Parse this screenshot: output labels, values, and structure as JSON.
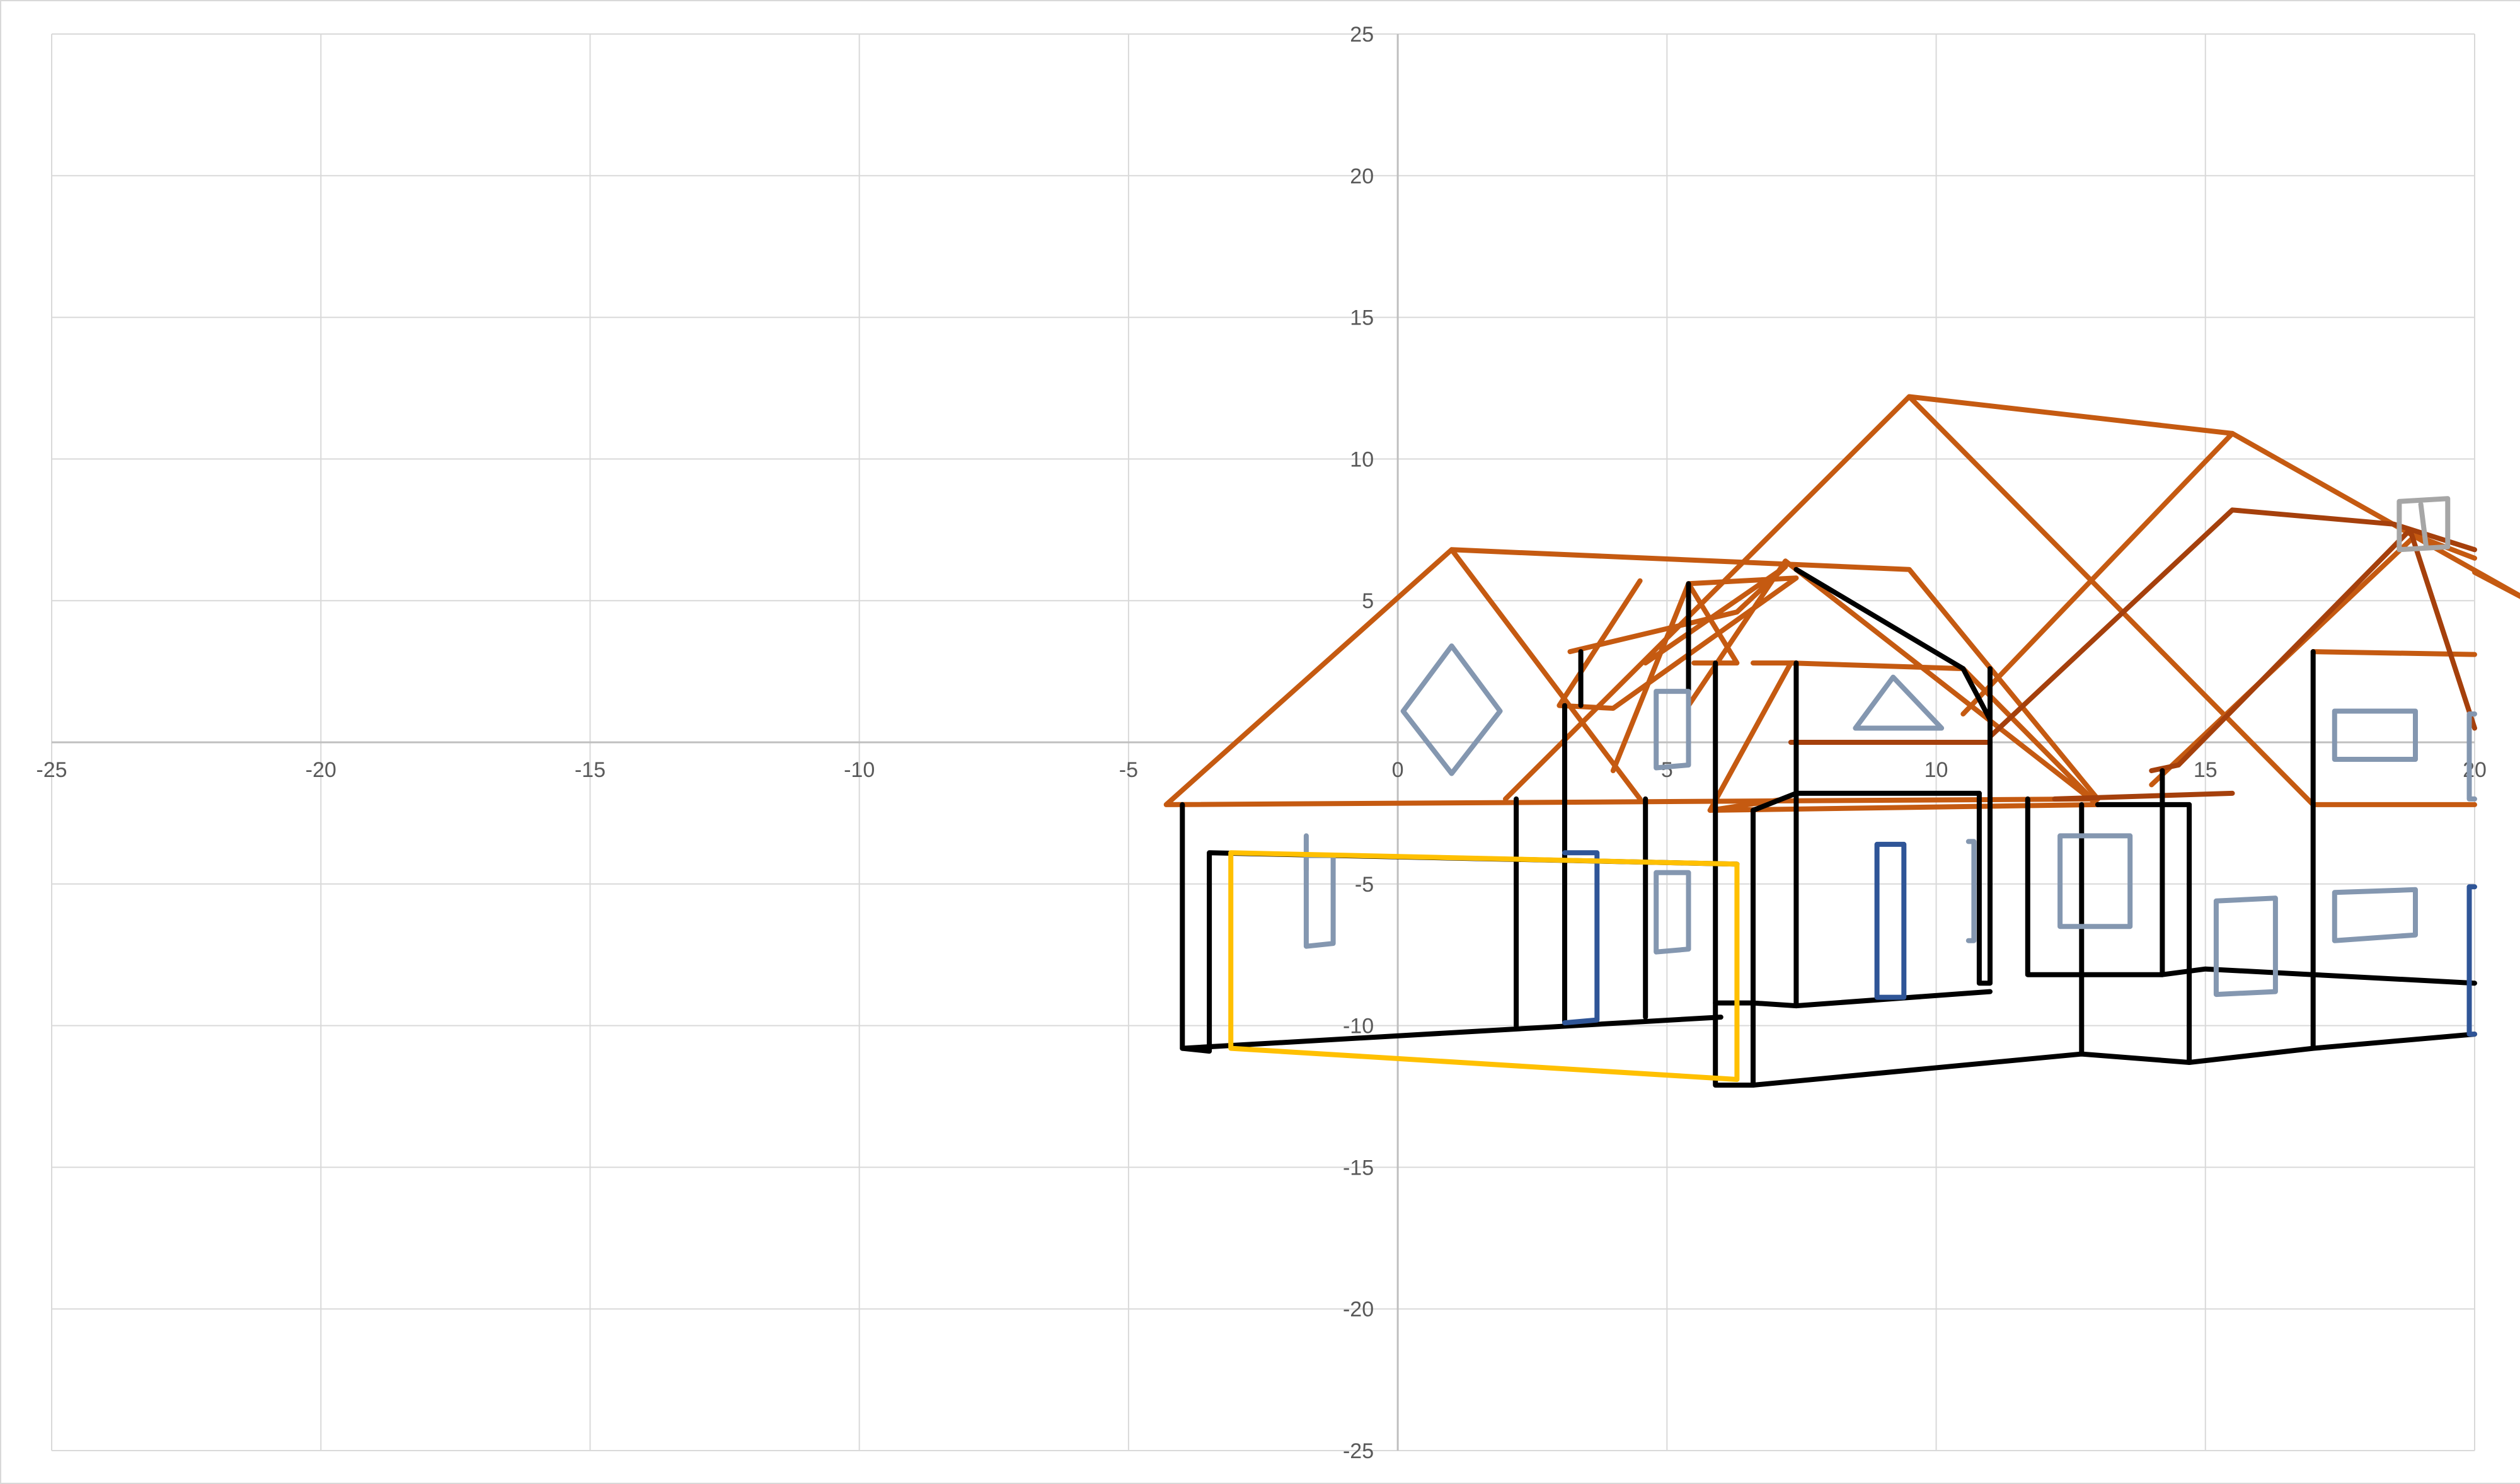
{
  "chart_data": {
    "type": "scatter",
    "title": "",
    "xlabel": "",
    "ylabel": "",
    "xlim": [
      -25,
      20
    ],
    "ylim": [
      -25,
      25
    ],
    "x_ticks": [
      -25,
      -20,
      -15,
      -10,
      -5,
      0,
      5,
      10,
      15,
      20
    ],
    "y_ticks": [
      25,
      20,
      15,
      10,
      5,
      0,
      -5,
      -10,
      -15,
      -20,
      -25
    ],
    "x_tick_labels": [
      "-25",
      "-20",
      "-15",
      "-10",
      "-5",
      "0",
      "5",
      "10",
      "15",
      "20"
    ],
    "y_tick_labels": [
      "25",
      "20",
      "15",
      "10",
      "5",
      "-5",
      "-10",
      "-15",
      "-20",
      "-25"
    ],
    "grid": true,
    "legend": "none",
    "colors": {
      "roof": "#c55a11",
      "roof_dark": "#a5400c",
      "wall": "#000000",
      "window": "#8497b0",
      "door": "#2f5597",
      "garage": "#ffc000",
      "gridline": "#d9d9d9",
      "axis": "#bfbfbf"
    },
    "series": [
      {
        "color": "#c55a11",
        "values": [
          [
            -4.3,
            -2.2
          ],
          [
            1,
            6.8
          ],
          [
            9.5,
            6.1
          ],
          [
            13,
            -2
          ],
          [
            -4.3,
            -2.2
          ]
        ]
      },
      {
        "color": "#c55a11",
        "values": [
          [
            1,
            6.8
          ],
          [
            4.5,
            -2
          ]
        ]
      },
      {
        "color": "#c55a11",
        "values": [
          [
            2,
            -2
          ],
          [
            9.5,
            12.2
          ],
          [
            15.5,
            10.9
          ],
          [
            21,
            5
          ],
          [
            20,
            6
          ]
        ]
      },
      {
        "color": "#c55a11",
        "values": [
          [
            9.5,
            12.2
          ],
          [
            17,
            -2.2
          ],
          [
            20,
            -2.2
          ]
        ]
      },
      {
        "color": "#c55a11",
        "values": [
          [
            10.5,
            1
          ],
          [
            15.5,
            10.9
          ]
        ]
      },
      {
        "color": "#c55a11",
        "values": [
          [
            4,
            -1
          ],
          [
            5.4,
            5.6
          ],
          [
            7.4,
            5.8
          ],
          [
            4,
            1.2
          ],
          [
            3,
            1.3
          ],
          [
            4.5,
            5.7
          ]
        ]
      },
      {
        "color": "#c55a11",
        "values": [
          [
            3.2,
            3.2
          ],
          [
            6.3,
            4.6
          ],
          [
            7.2,
            6.2
          ],
          [
            4.6,
            2.8
          ]
        ]
      },
      {
        "color": "#c55a11",
        "values": [
          [
            5.4,
            5.6
          ],
          [
            6.3,
            2.8
          ],
          [
            5.5,
            2.8
          ]
        ]
      },
      {
        "color": "#c55a11",
        "values": [
          [
            5.4,
            1.3
          ],
          [
            7.2,
            6.4
          ],
          [
            13,
            -2.2
          ],
          [
            5.8,
            -2.4
          ],
          [
            7.2,
            -2
          ]
        ]
      },
      {
        "color": "#c55a11",
        "values": [
          [
            5.8,
            -2.4
          ],
          [
            7.3,
            2.8
          ],
          [
            10.5,
            2.6
          ],
          [
            13,
            -2.2
          ]
        ]
      },
      {
        "color": "#c55a11",
        "values": [
          [
            6.6,
            2.8
          ],
          [
            7.4,
            2.8
          ]
        ]
      },
      {
        "color": "#c55a11",
        "values": [
          [
            17,
            3.2
          ],
          [
            20,
            3.1
          ]
        ]
      },
      {
        "color": "#c55a11",
        "values": [
          [
            14,
            -1.5
          ],
          [
            18.9,
            7.3
          ],
          [
            20,
            6.5
          ]
        ]
      },
      {
        "color": "#a5400c",
        "values": [
          [
            11,
            0.2
          ],
          [
            15.5,
            8.2
          ],
          [
            18.5,
            7.7
          ],
          [
            20,
            6.8
          ]
        ]
      },
      {
        "color": "#a5400c",
        "values": [
          [
            12.2,
            -2
          ],
          [
            15.5,
            -1.8
          ]
        ]
      },
      {
        "color": "#a5400c",
        "values": [
          [
            14,
            -1
          ],
          [
            14.5,
            -0.8
          ],
          [
            18.8,
            7.5
          ],
          [
            20,
            0.5
          ]
        ]
      },
      {
        "color": "#a5400c",
        "values": [
          [
            7.3,
            0
          ],
          [
            11,
            0
          ]
        ]
      },
      {
        "color": "#000000",
        "values": [
          [
            -4,
            -2.2
          ],
          [
            -4,
            -10.8
          ],
          [
            -3.5,
            -10.9
          ],
          [
            -3.5,
            -3.9
          ],
          [
            6.3,
            -4.3
          ]
        ]
      },
      {
        "color": "#000000",
        "values": [
          [
            -4,
            -10.8
          ],
          [
            6,
            -9.7
          ]
        ]
      },
      {
        "color": "#000000",
        "values": [
          [
            2.2,
            -2
          ],
          [
            2.2,
            -10
          ]
        ]
      },
      {
        "color": "#000000",
        "values": [
          [
            3.1,
            1.3
          ],
          [
            3.1,
            -9.9
          ]
        ]
      },
      {
        "color": "#000000",
        "values": [
          [
            4.6,
            -2
          ],
          [
            4.6,
            -9.7
          ]
        ]
      },
      {
        "color": "#000000",
        "values": [
          [
            3.4,
            1.3
          ],
          [
            3.4,
            3.2
          ]
        ]
      },
      {
        "color": "#000000",
        "values": [
          [
            5.4,
            5.6
          ],
          [
            5.4,
            1.3
          ]
        ]
      },
      {
        "color": "#000000",
        "values": [
          [
            5.9,
            2.8
          ],
          [
            5.9,
            -12.1
          ],
          [
            6.6,
            -12.1
          ],
          [
            6.6,
            -2.4
          ]
        ]
      },
      {
        "color": "#000000",
        "values": [
          [
            5.9,
            -9.2
          ],
          [
            6.6,
            -9.2
          ],
          [
            7.4,
            -9.3
          ],
          [
            11,
            -8.8
          ]
        ]
      },
      {
        "color": "#000000",
        "values": [
          [
            6.6,
            -2.4
          ],
          [
            7.4,
            -1.8
          ],
          [
            10.8,
            -1.8
          ]
        ]
      },
      {
        "color": "#000000",
        "values": [
          [
            7.4,
            6.1
          ],
          [
            10.5,
            2.6
          ],
          [
            11,
            0.8
          ]
        ]
      },
      {
        "color": "#000000",
        "values": [
          [
            7.4,
            2.8
          ],
          [
            7.4,
            -9.3
          ]
        ]
      },
      {
        "color": "#000000",
        "values": [
          [
            10.8,
            -1.8
          ],
          [
            10.8,
            -8.5
          ],
          [
            11,
            -8.5
          ],
          [
            11,
            2.6
          ]
        ]
      },
      {
        "color": "#000000",
        "values": [
          [
            11.7,
            -2
          ],
          [
            11.7,
            -8.2
          ],
          [
            14.2,
            -8.2
          ]
        ]
      },
      {
        "color": "#000000",
        "values": [
          [
            12.7,
            -2.2
          ],
          [
            12.7,
            -11
          ]
        ]
      },
      {
        "color": "#000000",
        "values": [
          [
            6.6,
            -12.1
          ],
          [
            12.7,
            -11
          ],
          [
            14.7,
            -11.3
          ],
          [
            17,
            -10.8
          ],
          [
            20,
            -10.3
          ]
        ]
      },
      {
        "color": "#000000",
        "values": [
          [
            14.2,
            -1
          ],
          [
            14.2,
            -8.2
          ],
          [
            15,
            -8
          ],
          [
            17,
            -8.2
          ],
          [
            20,
            -8.5
          ]
        ]
      },
      {
        "color": "#000000",
        "values": [
          [
            14.7,
            -2.2
          ],
          [
            14.7,
            -11.3
          ]
        ]
      },
      {
        "color": "#000000",
        "values": [
          [
            13,
            -2.2
          ],
          [
            14.7,
            -2.2
          ]
        ]
      },
      {
        "color": "#000000",
        "values": [
          [
            17,
            3.2
          ],
          [
            17,
            -10.8
          ]
        ]
      },
      {
        "color": "#8497b0",
        "values": [
          [
            1,
            3.4
          ],
          [
            1.9,
            1.1
          ],
          [
            1,
            -1.1
          ],
          [
            0.1,
            1.1
          ],
          [
            1,
            3.4
          ]
        ]
      },
      {
        "color": "#8497b0",
        "values": [
          [
            4.8,
            1.8
          ],
          [
            5.4,
            1.8
          ],
          [
            5.4,
            -0.8
          ],
          [
            4.8,
            -0.9
          ],
          [
            4.8,
            1.8
          ]
        ]
      },
      {
        "color": "#8497b0",
        "values": [
          [
            8.5,
            0.5
          ],
          [
            9.2,
            2.3
          ],
          [
            10.1,
            0.5
          ],
          [
            8.5,
            0.5
          ]
        ]
      },
      {
        "color": "#8497b0",
        "values": [
          [
            17.4,
            1.1
          ],
          [
            18.9,
            1.1
          ],
          [
            18.9,
            -0.6
          ],
          [
            17.4,
            -0.6
          ],
          [
            17.4,
            1.1
          ]
        ]
      },
      {
        "color": "#8497b0",
        "values": [
          [
            20,
            1.0
          ],
          [
            19.9,
            1.0
          ],
          [
            19.9,
            -2
          ],
          [
            20,
            -2
          ]
        ]
      },
      {
        "color": "#8497b0",
        "values": [
          [
            -1.7,
            -4
          ],
          [
            -1.2,
            -4
          ],
          [
            -1.2,
            -7.1
          ],
          [
            -1.7,
            -7.2
          ],
          [
            -1.7,
            -4
          ]
        ]
      },
      {
        "color": "#8497b0",
        "values": [
          [
            -1.7,
            -3.3
          ],
          [
            -1.7,
            -4.5
          ]
        ]
      },
      {
        "color": "#8497b0",
        "values": [
          [
            4.8,
            -4.6
          ],
          [
            5.4,
            -4.6
          ],
          [
            5.4,
            -7.3
          ],
          [
            4.8,
            -7.4
          ],
          [
            4.8,
            -4.6
          ]
        ]
      },
      {
        "color": "#8497b0",
        "values": [
          [
            10.6,
            -3.5
          ],
          [
            10.7,
            -3.5
          ],
          [
            10.7,
            -7
          ],
          [
            10.6,
            -7
          ]
        ]
      },
      {
        "color": "#8497b0",
        "values": [
          [
            12.3,
            -3.3
          ],
          [
            13.6,
            -3.3
          ],
          [
            13.6,
            -6.5
          ],
          [
            12.3,
            -6.5
          ],
          [
            12.3,
            -3.3
          ]
        ]
      },
      {
        "color": "#8497b0",
        "values": [
          [
            15.2,
            -5.6
          ],
          [
            16.3,
            -5.5
          ],
          [
            16.3,
            -8.8
          ],
          [
            15.2,
            -8.9
          ],
          [
            15.2,
            -5.6
          ]
        ]
      },
      {
        "color": "#8497b0",
        "values": [
          [
            17.4,
            -5.3
          ],
          [
            18.9,
            -5.2
          ],
          [
            18.9,
            -6.8
          ],
          [
            17.4,
            -7
          ],
          [
            17.4,
            -5.3
          ]
        ]
      },
      {
        "color": "#a6a6a6",
        "values": [
          [
            18.6,
            8.5
          ],
          [
            19.5,
            8.6
          ],
          [
            19.5,
            6.9
          ],
          [
            18.6,
            6.8
          ],
          [
            18.6,
            8.5
          ]
        ]
      },
      {
        "color": "#a6a6a6",
        "values": [
          [
            19,
            8.4
          ],
          [
            19.1,
            6.9
          ]
        ]
      },
      {
        "color": "#2f5597",
        "values": [
          [
            3.1,
            -3.9
          ],
          [
            3.7,
            -3.9
          ],
          [
            3.7,
            -9.8
          ],
          [
            3.1,
            -9.9
          ]
        ]
      },
      {
        "color": "#2f5597",
        "values": [
          [
            8.9,
            -3.6
          ],
          [
            9.4,
            -3.6
          ],
          [
            9.4,
            -9
          ],
          [
            8.9,
            -9
          ],
          [
            8.9,
            -3.6
          ]
        ]
      },
      {
        "color": "#2f5597",
        "values": [
          [
            20,
            -5.1
          ],
          [
            19.9,
            -5.1
          ],
          [
            19.9,
            -10.3
          ],
          [
            20,
            -10.3
          ]
        ]
      },
      {
        "color": "#ffc000",
        "values": [
          [
            -3.1,
            -3.9
          ],
          [
            6.3,
            -4.3
          ],
          [
            6.3,
            -11.9
          ],
          [
            -3.1,
            -10.8
          ],
          [
            -3.1,
            -3.9
          ]
        ]
      }
    ]
  }
}
